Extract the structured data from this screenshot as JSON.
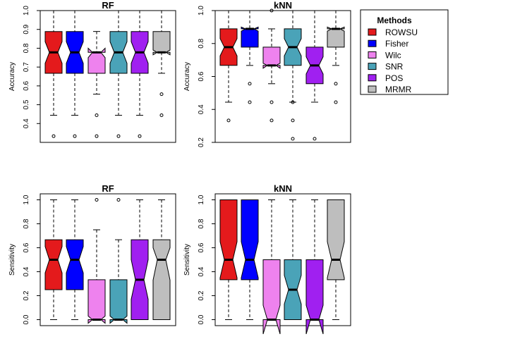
{
  "legend": {
    "title": "Methods",
    "items": [
      {
        "name": "ROWSU",
        "color": "#e41a1c"
      },
      {
        "name": "Fisher",
        "color": "#0000ff"
      },
      {
        "name": "Wilc",
        "color": "#ee82ee"
      },
      {
        "name": "SNR",
        "color": "#4aa3b8"
      },
      {
        "name": "POS",
        "color": "#a020f0"
      },
      {
        "name": "MRMR",
        "color": "#bebebe"
      }
    ]
  },
  "chart_data": [
    {
      "type": "boxplot",
      "title": "RF",
      "ylabel": "Accuracy",
      "ylim": [
        0.3,
        1.0
      ],
      "yticks": [
        "0.4",
        "0.5",
        "0.6",
        "0.7",
        "0.8",
        "0.9",
        "1.0"
      ],
      "boxes": [
        {
          "method": "ROWSU",
          "min": 0.444,
          "q1": 0.667,
          "median": 0.778,
          "q3": 0.889,
          "max": 1.0,
          "notch_lo": 0.72,
          "notch_hi": 0.835,
          "outliers": [
            0.333
          ]
        },
        {
          "method": "Fisher",
          "min": 0.444,
          "q1": 0.667,
          "median": 0.778,
          "q3": 0.889,
          "max": 1.0,
          "notch_lo": 0.72,
          "notch_hi": 0.835,
          "outliers": [
            0.333
          ]
        },
        {
          "method": "Wilc",
          "min": 0.556,
          "q1": 0.667,
          "median": 0.778,
          "q3": 0.778,
          "max": 0.889,
          "notch_lo": 0.75,
          "notch_hi": 0.8,
          "outliers": [
            0.444,
            0.333
          ]
        },
        {
          "method": "SNR",
          "min": 0.444,
          "q1": 0.667,
          "median": 0.778,
          "q3": 0.889,
          "max": 1.0,
          "notch_lo": 0.72,
          "notch_hi": 0.835,
          "outliers": [
            0.333
          ]
        },
        {
          "method": "POS",
          "min": 0.444,
          "q1": 0.667,
          "median": 0.778,
          "q3": 0.889,
          "max": 1.0,
          "notch_lo": 0.72,
          "notch_hi": 0.835,
          "outliers": [
            0.333
          ]
        },
        {
          "method": "MRMR",
          "min": 0.667,
          "q1": 0.778,
          "median": 0.778,
          "q3": 0.889,
          "max": 1.0,
          "notch_lo": 0.765,
          "notch_hi": 0.79,
          "outliers": [
            0.556,
            0.444
          ]
        }
      ]
    },
    {
      "type": "boxplot",
      "title": "kNN",
      "ylabel": "Accuracy",
      "ylim": [
        0.2,
        1.0
      ],
      "yticks": [
        "0.2",
        "0.4",
        "0.6",
        "0.8",
        "1.0"
      ],
      "boxes": [
        {
          "method": "ROWSU",
          "min": 0.444,
          "q1": 0.667,
          "median": 0.778,
          "q3": 0.889,
          "max": 1.0,
          "notch_lo": 0.725,
          "notch_hi": 0.83,
          "outliers": [
            0.333
          ]
        },
        {
          "method": "Fisher",
          "min": 0.667,
          "q1": 0.778,
          "median": 0.889,
          "q3": 0.889,
          "max": 1.0,
          "notch_lo": 0.875,
          "notch_hi": 0.9,
          "outliers": [
            0.556,
            0.444
          ]
        },
        {
          "method": "Wilc",
          "min": 0.556,
          "q1": 0.667,
          "median": 0.667,
          "q3": 0.778,
          "max": 0.889,
          "notch_lo": 0.65,
          "notch_hi": 0.68,
          "outliers": [
            1.0,
            0.444,
            0.333
          ]
        },
        {
          "method": "SNR",
          "min": 0.444,
          "q1": 0.667,
          "median": 0.778,
          "q3": 0.889,
          "max": 1.0,
          "notch_lo": 0.725,
          "notch_hi": 0.83,
          "outliers": [
            0.444,
            0.333,
            0.222
          ]
        },
        {
          "method": "POS",
          "min": 0.444,
          "q1": 0.556,
          "median": 0.667,
          "q3": 0.778,
          "max": 1.0,
          "notch_lo": 0.615,
          "notch_hi": 0.72,
          "outliers": [
            0.222
          ]
        },
        {
          "method": "MRMR",
          "min": 0.667,
          "q1": 0.778,
          "median": 0.889,
          "q3": 0.889,
          "max": 1.0,
          "notch_lo": 0.875,
          "notch_hi": 0.9,
          "outliers": [
            0.556,
            0.444
          ]
        }
      ]
    },
    {
      "type": "boxplot",
      "title": "RF",
      "ylabel": "Sensitivity",
      "ylim": [
        -0.05,
        1.05
      ],
      "yticks": [
        "0.0",
        "0.2",
        "0.4",
        "0.6",
        "0.8",
        "1.0"
      ],
      "boxes": [
        {
          "method": "ROWSU",
          "min": 0.0,
          "q1": 0.25,
          "median": 0.5,
          "q3": 0.667,
          "max": 1.0,
          "notch_lo": 0.39,
          "notch_hi": 0.61,
          "outliers": []
        },
        {
          "method": "Fisher",
          "min": 0.0,
          "q1": 0.25,
          "median": 0.5,
          "q3": 0.667,
          "max": 1.0,
          "notch_lo": 0.39,
          "notch_hi": 0.61,
          "outliers": []
        },
        {
          "method": "Wilc",
          "min": 0.0,
          "q1": 0.0,
          "median": 0.0,
          "q3": 0.333,
          "max": 0.75,
          "notch_lo": -0.03,
          "notch_hi": 0.03,
          "outliers": [
            1.0
          ]
        },
        {
          "method": "SNR",
          "min": 0.0,
          "q1": 0.0,
          "median": 0.0,
          "q3": 0.333,
          "max": 0.667,
          "notch_lo": -0.03,
          "notch_hi": 0.03,
          "outliers": [
            1.0
          ]
        },
        {
          "method": "POS",
          "min": 0.0,
          "q1": 0.0,
          "median": 0.333,
          "q3": 0.667,
          "max": 1.0,
          "notch_lo": 0.17,
          "notch_hi": 0.5,
          "outliers": []
        },
        {
          "method": "MRMR",
          "min": 0.0,
          "q1": 0.0,
          "median": 0.5,
          "q3": 0.667,
          "max": 1.0,
          "notch_lo": 0.33,
          "notch_hi": 0.6,
          "outliers": []
        }
      ]
    },
    {
      "type": "boxplot",
      "title": "kNN",
      "ylabel": "Sensitivity",
      "ylim": [
        -0.05,
        1.05
      ],
      "yticks": [
        "0.0",
        "0.2",
        "0.4",
        "0.6",
        "0.8",
        "1.0"
      ],
      "boxes": [
        {
          "method": "ROWSU",
          "min": 0.0,
          "q1": 0.333,
          "median": 0.5,
          "q3": 1.0,
          "max": 1.0,
          "notch_lo": 0.35,
          "notch_hi": 0.65,
          "outliers": []
        },
        {
          "method": "Fisher",
          "min": 0.0,
          "q1": 0.333,
          "median": 0.5,
          "q3": 1.0,
          "max": 1.0,
          "notch_lo": 0.35,
          "notch_hi": 0.65,
          "outliers": []
        },
        {
          "method": "Wilc",
          "min": 0.0,
          "q1": 0.0,
          "median": 0.0,
          "q3": 0.5,
          "max": 1.0,
          "notch_lo": -0.12,
          "notch_hi": 0.12,
          "outliers": []
        },
        {
          "method": "SNR",
          "min": 0.0,
          "q1": 0.0,
          "median": 0.25,
          "q3": 0.5,
          "max": 1.0,
          "notch_lo": 0.13,
          "notch_hi": 0.37,
          "outliers": []
        },
        {
          "method": "POS",
          "min": 0.0,
          "q1": 0.0,
          "median": 0.0,
          "q3": 0.5,
          "max": 1.0,
          "notch_lo": -0.12,
          "notch_hi": 0.12,
          "outliers": []
        },
        {
          "method": "MRMR",
          "min": 0.0,
          "q1": 0.333,
          "median": 0.5,
          "q3": 1.0,
          "max": 1.0,
          "notch_lo": 0.35,
          "notch_hi": 0.65,
          "outliers": []
        }
      ]
    }
  ]
}
